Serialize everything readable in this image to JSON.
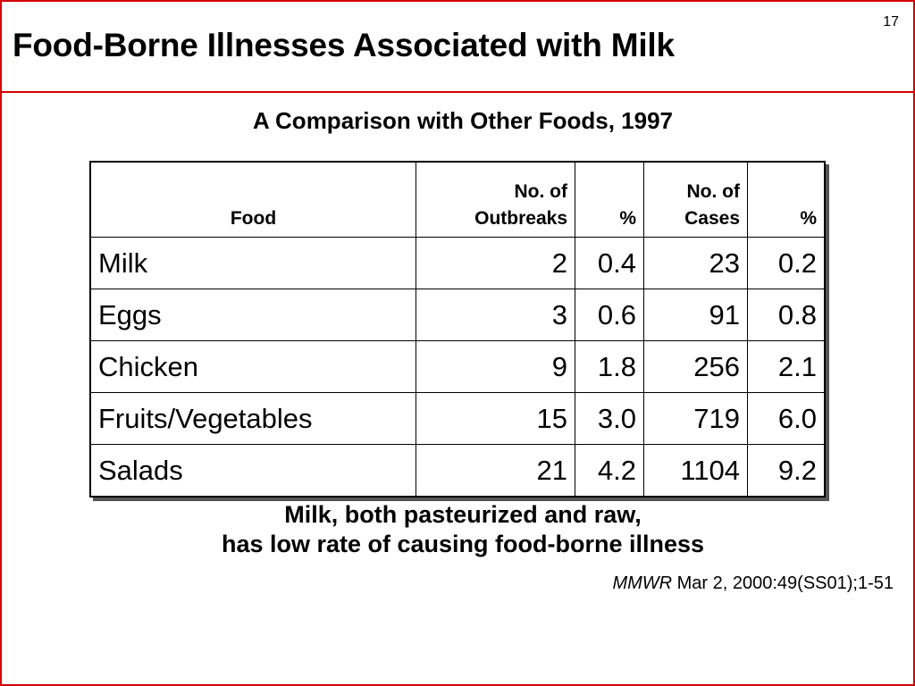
{
  "slide": {
    "number": "17",
    "title": "Food-Borne Illnesses Associated with Milk",
    "subtitle": "A Comparison with Other Foods, 1997"
  },
  "table": {
    "headers": {
      "food": "Food",
      "outbreaks_line1": "No. of",
      "outbreaks_line2": "Outbreaks",
      "pct1": "%",
      "cases_line1": "No. of",
      "cases_line2": "Cases",
      "pct2": "%"
    },
    "rows": [
      {
        "food": "Milk",
        "outbreaks": "2",
        "outbreaks_pct": "0.4",
        "cases": "23",
        "cases_pct": "0.2"
      },
      {
        "food": "Eggs",
        "outbreaks": "3",
        "outbreaks_pct": "0.6",
        "cases": "91",
        "cases_pct": "0.8"
      },
      {
        "food": "Chicken",
        "outbreaks": "9",
        "outbreaks_pct": "1.8",
        "cases": "256",
        "cases_pct": "2.1"
      },
      {
        "food": "Fruits/Vegetables",
        "outbreaks": "15",
        "outbreaks_pct": "3.0",
        "cases": "719",
        "cases_pct": "6.0"
      },
      {
        "food": "Salads",
        "outbreaks": "21",
        "outbreaks_pct": "4.2",
        "cases": "1104",
        "cases_pct": "9.2"
      }
    ]
  },
  "conclusion": {
    "line1": "Milk, both pasteurized and raw,",
    "line2": "has low rate of causing food-borne illness"
  },
  "citation": {
    "journal": "MMWR",
    "reference": " Mar 2, 2000:49(SS01);1-51"
  },
  "colors": {
    "border": "#d40000"
  }
}
